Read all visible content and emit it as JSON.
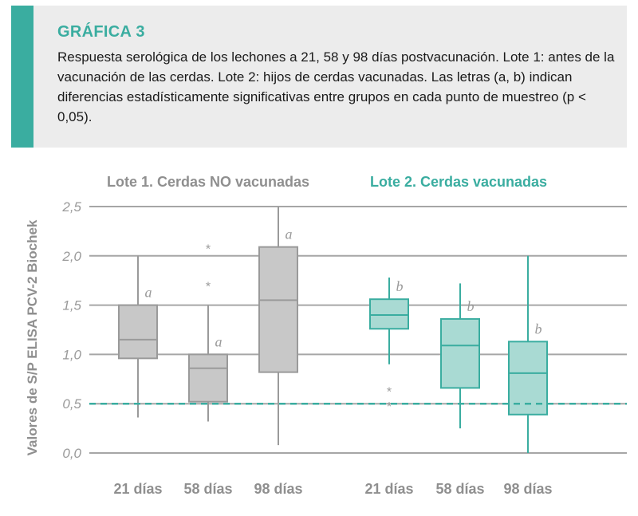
{
  "header": {
    "title": "GRÁFICA 3",
    "caption": "Respuesta serológica de los lechones a 21, 58 y 98 días postvacunación. Lote 1: antes de la vacunación de las cerdas. Lote 2: hijos de cerdas vacunadas. Las letras (a, b) indican diferencias estadísticamente significativas entre grupos en cada punto de muestreo (p < 0,05)."
  },
  "colors": {
    "accent": "#3aada0",
    "gray_fill": "#c8c8c8",
    "gray_stroke": "#9a9a9a",
    "teal_fill": "#a9dad3",
    "teal_stroke": "#3aada0",
    "gridline": "#a6a6a6"
  },
  "chart_data": {
    "type": "boxplot",
    "ylabel": "Valores de S/P ELISA PCV-2 Biochek",
    "ylim": [
      0,
      2.5
    ],
    "yticks": [
      "0,0",
      "0,5",
      "1,0",
      "1,5",
      "2,0",
      "2,5"
    ],
    "yticks_values": [
      0,
      0.5,
      1.0,
      1.5,
      2.0,
      2.5
    ],
    "grid": true,
    "reference_line": {
      "value": 0.5,
      "style": "dashed"
    },
    "groups": [
      {
        "name": "Lote 1. Cerdas NO vacunadas",
        "color": "gray",
        "boxes": [
          {
            "category": "21 días",
            "min": 0.36,
            "q1": 0.96,
            "median": 1.15,
            "q3": 1.5,
            "max": 2.0,
            "letter": "a",
            "outliers": []
          },
          {
            "category": "58 días",
            "min": 0.32,
            "q1": 0.52,
            "median": 0.86,
            "q3": 1.0,
            "max": 1.5,
            "letter": "a",
            "outliers": [
              1.72,
              2.1
            ]
          },
          {
            "category": "98 días",
            "min": 0.08,
            "q1": 0.82,
            "median": 1.55,
            "q3": 2.09,
            "max": 2.5,
            "letter": "a",
            "outliers": []
          }
        ]
      },
      {
        "name": "Lote 2. Cerdas vacunadas",
        "color": "teal",
        "boxes": [
          {
            "category": "21 días",
            "min": 0.9,
            "q1": 1.26,
            "median": 1.4,
            "q3": 1.56,
            "max": 1.78,
            "letter": "b",
            "outliers": [
              0.5,
              0.65
            ]
          },
          {
            "category": "58 días",
            "min": 0.25,
            "q1": 0.66,
            "median": 1.09,
            "q3": 1.36,
            "max": 1.72,
            "letter": "b",
            "outliers": []
          },
          {
            "category": "98 días",
            "min": 0.0,
            "q1": 0.39,
            "median": 0.81,
            "q3": 1.13,
            "max": 2.0,
            "letter": "b",
            "outliers": []
          }
        ]
      }
    ]
  }
}
